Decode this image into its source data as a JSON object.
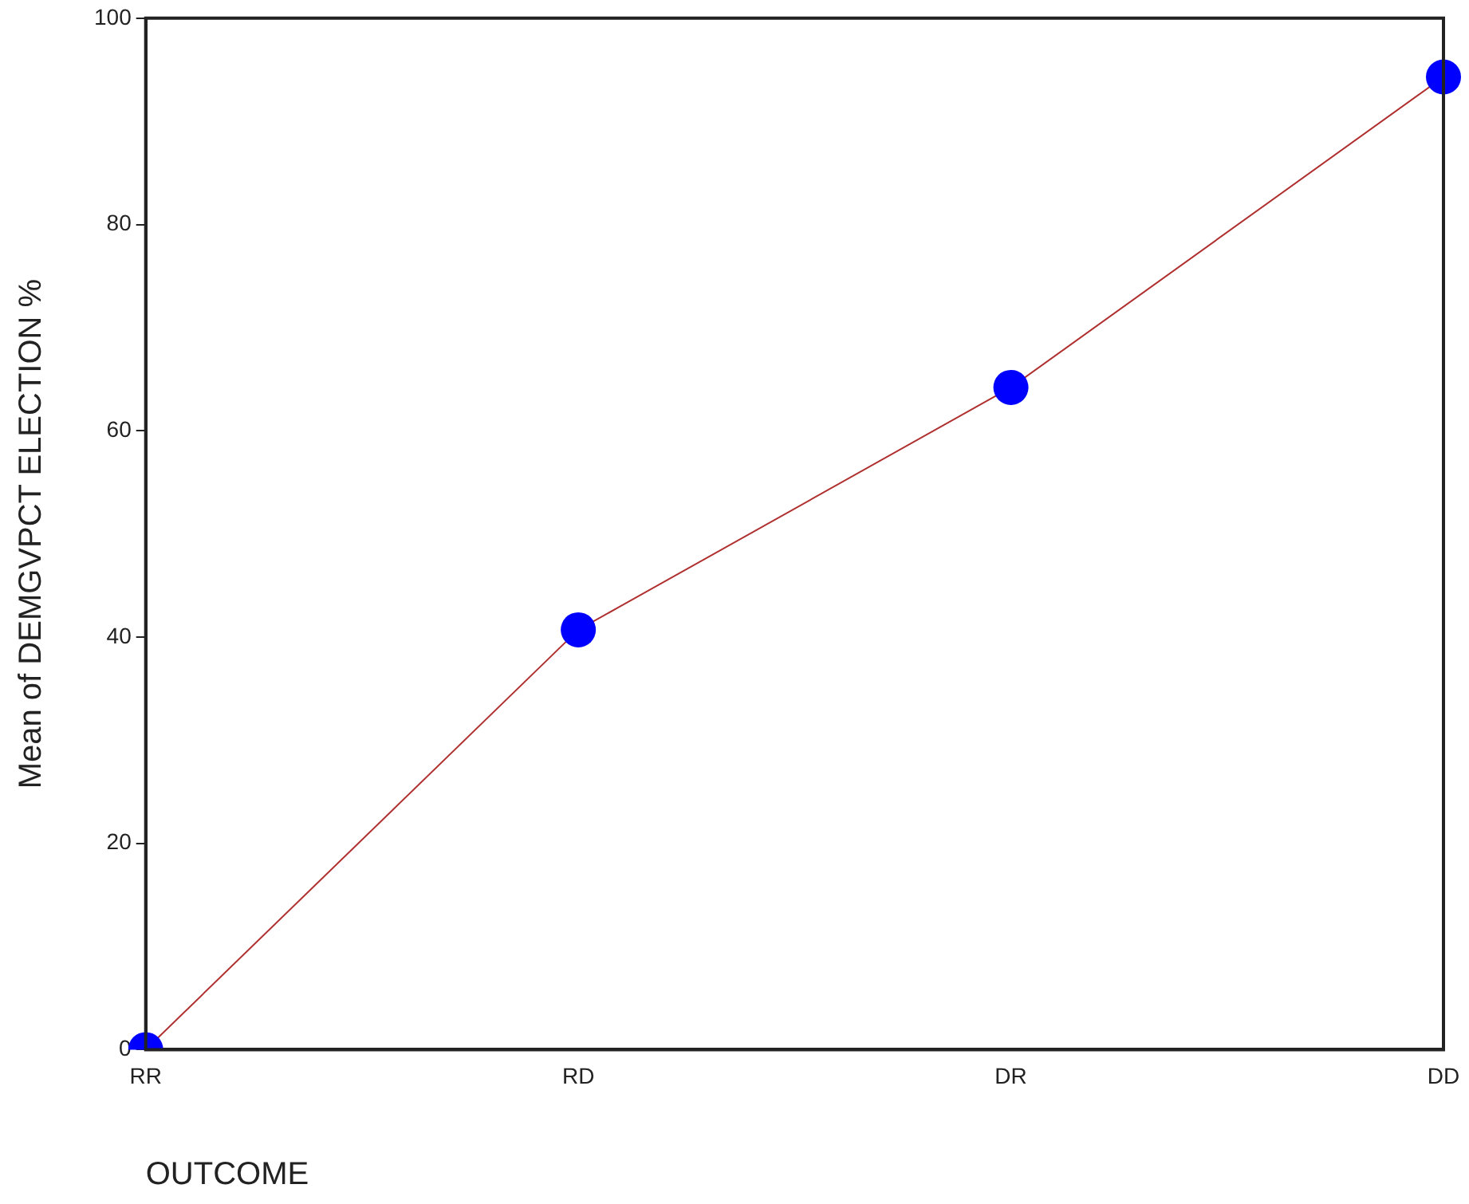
{
  "chart_data": {
    "type": "line",
    "xlabel": "OUTCOME",
    "ylabel": "Mean of DEMGVPCT ELECTION %",
    "categories": [
      "RR",
      "RD",
      "DR",
      "DD"
    ],
    "series": [
      {
        "color": "#b03030",
        "values": [
          0,
          40.7,
          64.2,
          94.3
        ]
      }
    ],
    "marker": "circle",
    "line_style": "solid",
    "ylim": [
      0,
      100
    ],
    "yticks": [
      0,
      20,
      40,
      60,
      80,
      100
    ],
    "grid": false,
    "legend": false
  }
}
